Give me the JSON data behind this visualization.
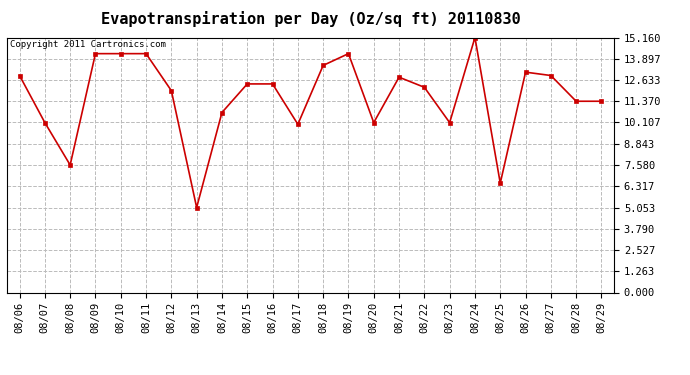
{
  "title": "Evapotranspiration per Day (Oz/sq ft) 20110830",
  "copyright_text": "Copyright 2011 Cartronics.com",
  "dates": [
    "08/06",
    "08/07",
    "08/08",
    "08/09",
    "08/10",
    "08/11",
    "08/12",
    "08/13",
    "08/14",
    "08/15",
    "08/16",
    "08/17",
    "08/18",
    "08/19",
    "08/20",
    "08/21",
    "08/22",
    "08/23",
    "08/24",
    "08/25",
    "08/26",
    "08/27",
    "08/28",
    "08/29"
  ],
  "values": [
    12.9,
    10.1,
    7.58,
    14.2,
    14.2,
    14.2,
    12.0,
    5.053,
    10.7,
    12.4,
    12.4,
    10.0,
    13.5,
    14.2,
    10.1,
    12.8,
    12.2,
    10.1,
    15.16,
    6.5,
    13.1,
    12.9,
    11.37,
    11.37
  ],
  "line_color": "#CC0000",
  "marker": "s",
  "marker_size": 3,
  "marker_color": "#CC0000",
  "ylim": [
    0,
    15.16
  ],
  "yticks": [
    0.0,
    1.263,
    2.527,
    3.79,
    5.053,
    6.317,
    7.58,
    8.843,
    10.107,
    11.37,
    12.633,
    13.897,
    15.16
  ],
  "ytick_labels": [
    "0.000",
    "1.263",
    "2.527",
    "3.790",
    "5.053",
    "6.317",
    "7.580",
    "8.843",
    "10.107",
    "11.370",
    "12.633",
    "13.897",
    "15.160"
  ],
  "grid_color": "#bbbbbb",
  "grid_style": "--",
  "bg_color": "#ffffff",
  "title_fontsize": 11,
  "copyright_fontsize": 6.5,
  "tick_fontsize": 7.5
}
